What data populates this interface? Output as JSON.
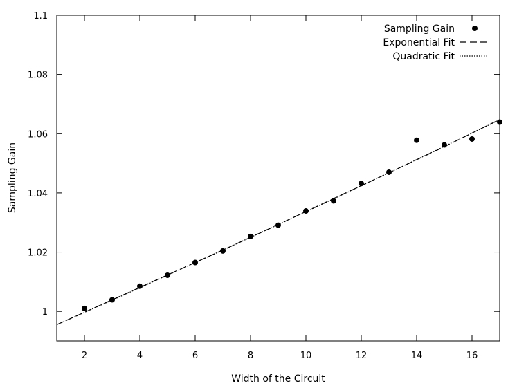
{
  "chart_data": {
    "type": "scatter",
    "title": "",
    "xlabel": "Width of the Circuit",
    "ylabel": "Sampling Gain",
    "xlim": [
      1,
      17
    ],
    "ylim": [
      0.99,
      1.1
    ],
    "xticks": [
      2,
      4,
      6,
      8,
      10,
      12,
      14,
      16
    ],
    "yticks": [
      1,
      1.02,
      1.04,
      1.06,
      1.08,
      1.1
    ],
    "ytick_labels": [
      "1",
      "1.02",
      "1.04",
      "1.06",
      "1.08",
      "1.1"
    ],
    "grid": false,
    "legend_position": "top-right",
    "series": [
      {
        "name": "Sampling Gain",
        "kind": "points",
        "x": [
          2,
          3,
          4,
          5,
          6,
          7,
          8,
          9,
          10,
          11,
          12,
          13,
          14,
          15,
          16,
          17
        ],
        "y": [
          1.001,
          1.0039,
          1.0085,
          1.0122,
          1.0165,
          1.0204,
          1.0253,
          1.0291,
          1.0339,
          1.0373,
          1.0432,
          1.047,
          1.0578,
          1.0562,
          1.0582,
          1.0639
        ]
      },
      {
        "name": "Exponential Fit",
        "kind": "line",
        "dash": "long-dash",
        "x": [
          1,
          3,
          5,
          7,
          9,
          11,
          13,
          15,
          17
        ],
        "y": [
          0.9955,
          1.0039,
          1.0123,
          1.0207,
          1.0293,
          1.0381,
          1.0468,
          1.0556,
          1.0648
        ]
      },
      {
        "name": "Quadratic Fit",
        "kind": "line",
        "dash": "dotted",
        "x": [
          1,
          3,
          5,
          7,
          9,
          11,
          13,
          15,
          17
        ],
        "y": [
          0.9955,
          1.0038,
          1.0122,
          1.0207,
          1.0293,
          1.038,
          1.0468,
          1.0557,
          1.0647
        ]
      }
    ]
  }
}
